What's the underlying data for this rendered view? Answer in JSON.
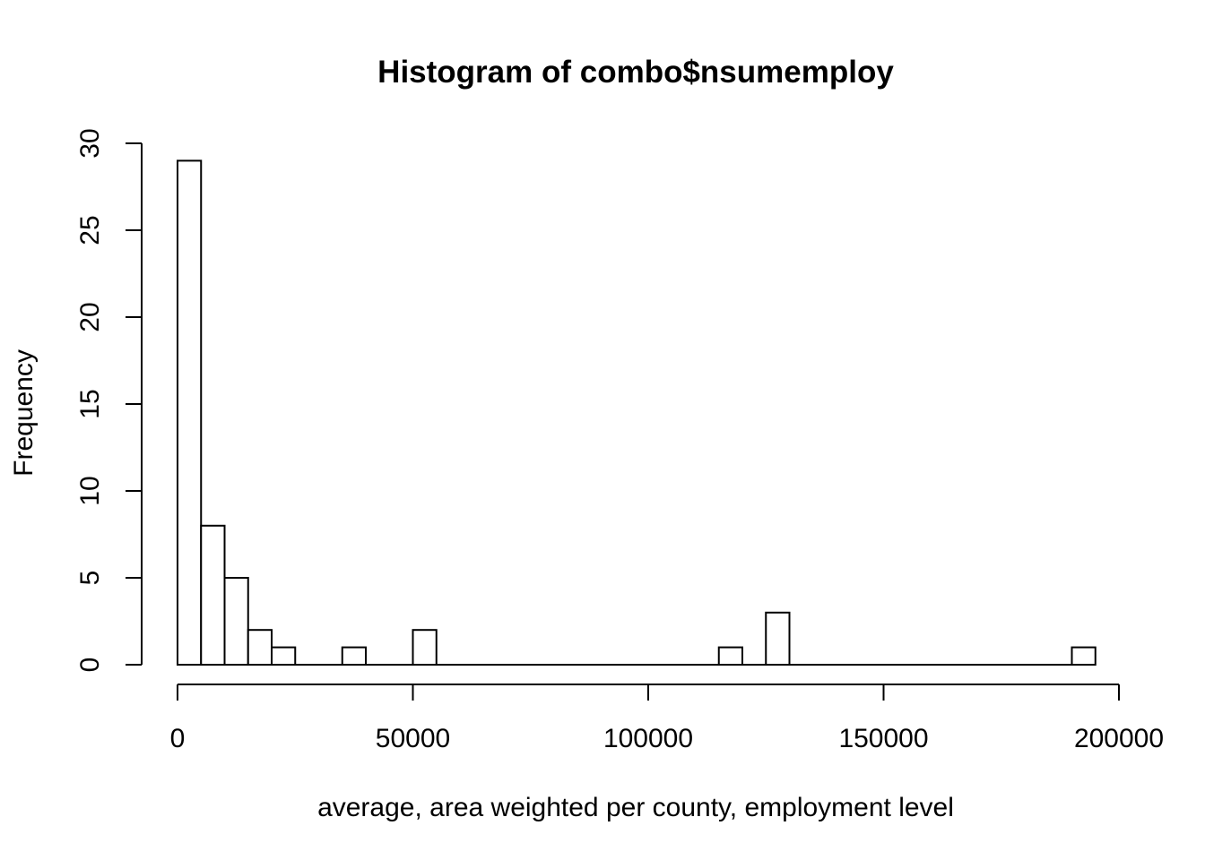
{
  "chart_data": {
    "type": "bar",
    "title": "Histogram of combo$nsumemploy",
    "xlabel": "average, area weighted per county, employment level",
    "ylabel": "Frequency",
    "xlim": [
      0,
      200000
    ],
    "ylim": [
      0,
      30
    ],
    "bin_width": 5000,
    "bins": [
      {
        "start": 0,
        "end": 5000,
        "count": 29
      },
      {
        "start": 5000,
        "end": 10000,
        "count": 8
      },
      {
        "start": 10000,
        "end": 15000,
        "count": 5
      },
      {
        "start": 15000,
        "end": 20000,
        "count": 2
      },
      {
        "start": 20000,
        "end": 25000,
        "count": 1
      },
      {
        "start": 25000,
        "end": 30000,
        "count": 0
      },
      {
        "start": 30000,
        "end": 35000,
        "count": 0
      },
      {
        "start": 35000,
        "end": 40000,
        "count": 1
      },
      {
        "start": 40000,
        "end": 45000,
        "count": 0
      },
      {
        "start": 45000,
        "end": 50000,
        "count": 0
      },
      {
        "start": 50000,
        "end": 55000,
        "count": 2
      },
      {
        "start": 55000,
        "end": 60000,
        "count": 0
      },
      {
        "start": 60000,
        "end": 65000,
        "count": 0
      },
      {
        "start": 65000,
        "end": 70000,
        "count": 0
      },
      {
        "start": 70000,
        "end": 75000,
        "count": 0
      },
      {
        "start": 75000,
        "end": 80000,
        "count": 0
      },
      {
        "start": 80000,
        "end": 85000,
        "count": 0
      },
      {
        "start": 85000,
        "end": 90000,
        "count": 0
      },
      {
        "start": 90000,
        "end": 95000,
        "count": 0
      },
      {
        "start": 95000,
        "end": 100000,
        "count": 0
      },
      {
        "start": 100000,
        "end": 105000,
        "count": 0
      },
      {
        "start": 105000,
        "end": 110000,
        "count": 0
      },
      {
        "start": 110000,
        "end": 115000,
        "count": 0
      },
      {
        "start": 115000,
        "end": 120000,
        "count": 1
      },
      {
        "start": 120000,
        "end": 125000,
        "count": 0
      },
      {
        "start": 125000,
        "end": 130000,
        "count": 3
      },
      {
        "start": 130000,
        "end": 135000,
        "count": 0
      },
      {
        "start": 135000,
        "end": 140000,
        "count": 0
      },
      {
        "start": 140000,
        "end": 145000,
        "count": 0
      },
      {
        "start": 145000,
        "end": 150000,
        "count": 0
      },
      {
        "start": 150000,
        "end": 155000,
        "count": 0
      },
      {
        "start": 155000,
        "end": 160000,
        "count": 0
      },
      {
        "start": 160000,
        "end": 165000,
        "count": 0
      },
      {
        "start": 165000,
        "end": 170000,
        "count": 0
      },
      {
        "start": 170000,
        "end": 175000,
        "count": 0
      },
      {
        "start": 175000,
        "end": 180000,
        "count": 0
      },
      {
        "start": 180000,
        "end": 185000,
        "count": 0
      },
      {
        "start": 185000,
        "end": 190000,
        "count": 0
      },
      {
        "start": 190000,
        "end": 195000,
        "count": 1
      }
    ],
    "x_ticks": [
      {
        "value": 0,
        "label": "0"
      },
      {
        "value": 50000,
        "label": "50000"
      },
      {
        "value": 100000,
        "label": "100000"
      },
      {
        "value": 150000,
        "label": "150000"
      },
      {
        "value": 200000,
        "label": "200000"
      }
    ],
    "y_ticks": [
      {
        "value": 0,
        "label": "0"
      },
      {
        "value": 5,
        "label": "5"
      },
      {
        "value": 10,
        "label": "10"
      },
      {
        "value": 15,
        "label": "15"
      },
      {
        "value": 20,
        "label": "20"
      },
      {
        "value": 25,
        "label": "25"
      },
      {
        "value": 30,
        "label": "30"
      }
    ],
    "colors": {
      "bar_fill": "#ffffff",
      "bar_stroke": "#000000",
      "axis": "#000000",
      "background": "#ffffff"
    },
    "grid": false
  }
}
